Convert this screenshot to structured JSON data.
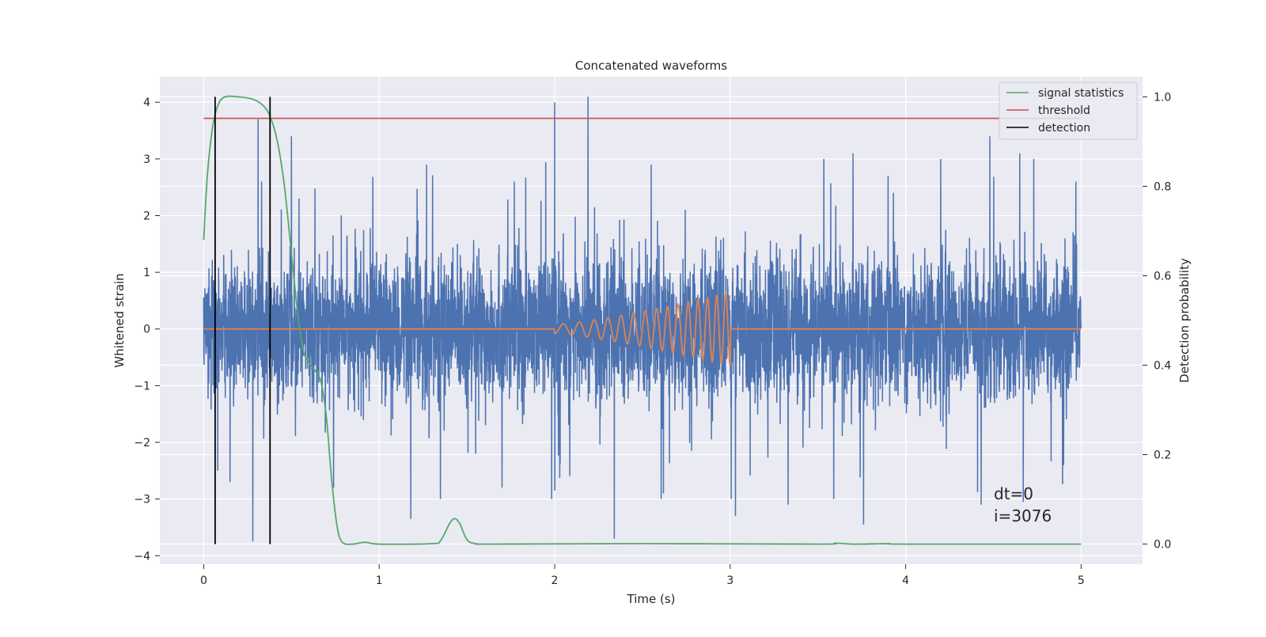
{
  "chart_data": {
    "type": "line",
    "title": "Concatenated waveforms",
    "xlabel": "Time (s)",
    "ylabel_left": "Whitened strain",
    "ylabel_right": "Detection probability",
    "xlim": [
      -0.25,
      5.35
    ],
    "ylim_left": [
      -4.15,
      4.45
    ],
    "ylim_right": [
      -0.045,
      1.045
    ],
    "grid": true,
    "legend_placement": "top-right",
    "x_ticks": [
      {
        "value": 0,
        "label": "0"
      },
      {
        "value": 1,
        "label": "1"
      },
      {
        "value": 2,
        "label": "2"
      },
      {
        "value": 3,
        "label": "3"
      },
      {
        "value": 4,
        "label": "4"
      },
      {
        "value": 5,
        "label": "5"
      }
    ],
    "y_ticks_left": [
      {
        "value": 4,
        "label": "4"
      },
      {
        "value": 3,
        "label": "3"
      },
      {
        "value": 2,
        "label": "2"
      },
      {
        "value": 1,
        "label": "1"
      },
      {
        "value": 0,
        "label": "0"
      },
      {
        "value": -1,
        "label": "−1"
      },
      {
        "value": -2,
        "label": "−2"
      },
      {
        "value": -3,
        "label": "−3"
      },
      {
        "value": -4,
        "label": "−4"
      }
    ],
    "y_ticks_right": [
      {
        "value": 1.0,
        "label": "1.0"
      },
      {
        "value": 0.8,
        "label": "0.8"
      },
      {
        "value": 0.6,
        "label": "0.6"
      },
      {
        "value": 0.4,
        "label": "0.4"
      },
      {
        "value": 0.2,
        "label": "0.2"
      },
      {
        "value": 0.0,
        "label": "0.0"
      }
    ],
    "series": [
      {
        "key": "strain",
        "axis": "left",
        "color": "#4c72b0",
        "x_range": [
          0,
          5
        ],
        "noise_amplitude": 0.6,
        "spikes": [
          [
            0.31,
            3.7
          ],
          [
            0.33,
            2.6
          ],
          [
            0.5,
            3.4
          ],
          [
            1.27,
            2.9
          ],
          [
            2.0,
            4.0
          ],
          [
            2.19,
            4.1
          ],
          [
            1.77,
            2.6
          ],
          [
            3.7,
            3.1
          ],
          [
            4.2,
            3.0
          ],
          [
            4.48,
            3.4
          ],
          [
            4.97,
            2.6
          ],
          [
            3.9,
            2.7
          ],
          [
            0.28,
            -3.75
          ],
          [
            2.34,
            -3.7
          ],
          [
            3.76,
            -3.45
          ],
          [
            1.18,
            -3.35
          ],
          [
            4.43,
            -3.1
          ],
          [
            4.67,
            -3.05
          ],
          [
            0.74,
            -2.8
          ],
          [
            3.03,
            -3.3
          ],
          [
            3.33,
            -3.1
          ],
          [
            2.62,
            -2.9
          ],
          [
            0.08,
            -2.5
          ],
          [
            4.9,
            -2.4
          ],
          [
            1.7,
            -2.8
          ],
          [
            0.15,
            -2.7
          ],
          [
            4.65,
            3.1
          ],
          [
            2.55,
            2.9
          ]
        ]
      },
      {
        "key": "injection",
        "axis": "left",
        "color": "#dd8452",
        "x_range": [
          0,
          5
        ],
        "chirp_start": 2.0,
        "chirp_end": 3.0,
        "chirp_max_amplitude": 0.65
      },
      {
        "key": "signal_statistics",
        "name": "signal statistics",
        "axis": "right",
        "color": "#55a868",
        "points": [
          [
            0.0,
            0.68
          ],
          [
            0.02,
            0.82
          ],
          [
            0.05,
            0.93
          ],
          [
            0.08,
            0.98
          ],
          [
            0.12,
            1.0
          ],
          [
            0.2,
            1.0
          ],
          [
            0.28,
            0.995
          ],
          [
            0.34,
            0.98
          ],
          [
            0.38,
            0.955
          ],
          [
            0.42,
            0.9
          ],
          [
            0.46,
            0.8
          ],
          [
            0.5,
            0.65
          ],
          [
            0.54,
            0.5
          ],
          [
            0.57,
            0.43
          ],
          [
            0.6,
            0.405
          ],
          [
            0.64,
            0.385
          ],
          [
            0.67,
            0.36
          ],
          [
            0.7,
            0.28
          ],
          [
            0.73,
            0.14
          ],
          [
            0.76,
            0.04
          ],
          [
            0.79,
            0.004
          ],
          [
            0.85,
            0.0
          ],
          [
            0.92,
            0.004
          ],
          [
            1.0,
            0.0
          ],
          [
            1.3,
            0.001
          ],
          [
            1.35,
            0.008
          ],
          [
            1.4,
            0.045
          ],
          [
            1.43,
            0.057
          ],
          [
            1.46,
            0.045
          ],
          [
            1.5,
            0.01
          ],
          [
            1.55,
            0.001
          ],
          [
            1.65,
            0.0
          ],
          [
            2.5,
            0.001
          ],
          [
            3.5,
            0.0
          ],
          [
            3.6,
            0.002
          ],
          [
            3.7,
            0.0
          ],
          [
            3.9,
            0.001
          ],
          [
            4.0,
            0.0
          ],
          [
            5.0,
            0.0
          ]
        ]
      },
      {
        "key": "threshold",
        "name": "threshold",
        "axis": "right",
        "color": "#c44e52",
        "x_range": [
          0,
          5
        ],
        "value": 0.952
      },
      {
        "key": "detection",
        "name": "detection",
        "axis": "right",
        "color": "#000000",
        "x_positions": [
          0.065,
          0.378
        ],
        "y_range": [
          0.0,
          1.0
        ]
      }
    ],
    "annotations": [
      {
        "key": "dt",
        "text": "dt=0",
        "x": 4.5,
        "y": -2.9
      },
      {
        "key": "index",
        "text": "i=3076",
        "x": 4.5,
        "y": -3.3
      }
    ]
  }
}
